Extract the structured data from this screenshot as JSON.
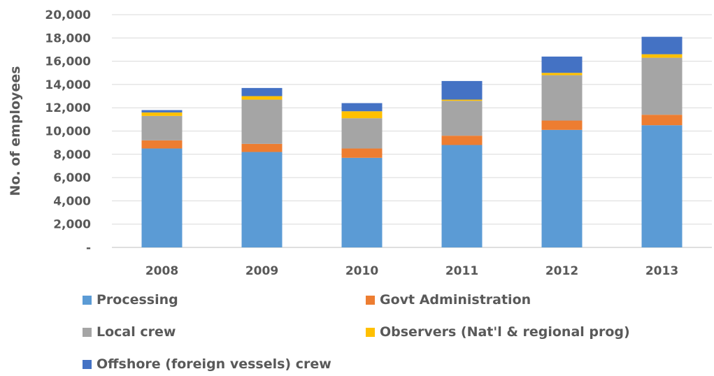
{
  "chart_data": {
    "type": "bar",
    "stacked": true,
    "categories": [
      "2008",
      "2009",
      "2010",
      "2011",
      "2012",
      "2013"
    ],
    "series": [
      {
        "name": "Processing",
        "color": "#5B9BD5",
        "values": [
          8500,
          8200,
          7700,
          8800,
          10100,
          10500
        ]
      },
      {
        "name": "Govt Administration",
        "color": "#ED7D31",
        "values": [
          700,
          700,
          800,
          800,
          800,
          900
        ]
      },
      {
        "name": "Local crew",
        "color": "#A5A5A5",
        "values": [
          2100,
          3800,
          2600,
          3000,
          3900,
          4900
        ]
      },
      {
        "name": "Observers (Nat'l & regional prog)",
        "color": "#FFC000",
        "values": [
          300,
          300,
          600,
          100,
          200,
          300
        ]
      },
      {
        "name": "Offshore (foreign vessels) crew",
        "color": "#4472C4",
        "values": [
          200,
          700,
          700,
          1600,
          1400,
          1500
        ]
      }
    ],
    "title": "",
    "xlabel": "",
    "ylabel": "No. of employees",
    "ylim": [
      0,
      20000
    ],
    "yticks": [
      "-",
      "2,000",
      "4,000",
      "6,000",
      "8,000",
      "10,000",
      "12,000",
      "14,000",
      "16,000",
      "18,000",
      "20,000"
    ],
    "grid": true,
    "legend_position": "bottom"
  }
}
